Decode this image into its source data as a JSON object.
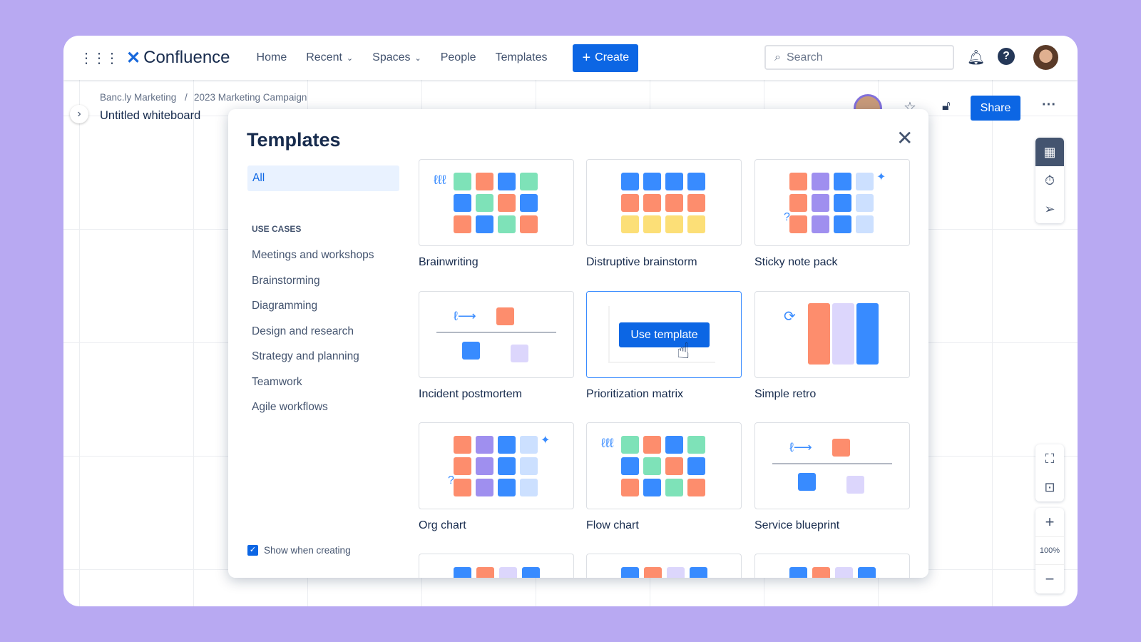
{
  "header": {
    "app_name": "Confluence",
    "nav": [
      {
        "label": "Home",
        "dropdown": false
      },
      {
        "label": "Recent",
        "dropdown": true
      },
      {
        "label": "Spaces",
        "dropdown": true
      },
      {
        "label": "People",
        "dropdown": false
      },
      {
        "label": "Templates",
        "dropdown": false
      }
    ],
    "create_label": "Create",
    "search_placeholder": "Search"
  },
  "page": {
    "breadcrumb": [
      "Banc.ly Marketing",
      "2023 Marketing Campaign"
    ],
    "title": "Untitled whiteboard",
    "share_label": "Share"
  },
  "modal": {
    "title": "Templates",
    "categories_all": "All",
    "use_cases_heading": "USE CASES",
    "use_cases": [
      "Meetings and workshops",
      "Brainstorming",
      "Diagramming",
      "Design and research",
      "Strategy and planning",
      "Teamwork",
      "Agile workflows"
    ],
    "show_when_creating": "Show when creating",
    "show_when_creating_checked": true,
    "templates": [
      {
        "name": "Brainwriting",
        "kind": "grid-a"
      },
      {
        "name": "Distruptive brainstorm",
        "kind": "grid-b"
      },
      {
        "name": "Sticky note pack",
        "kind": "grid-c"
      },
      {
        "name": "Incident postmortem",
        "kind": "timeline"
      },
      {
        "name": "Prioritization matrix",
        "kind": "matrix",
        "hovered": true
      },
      {
        "name": "Simple retro",
        "kind": "retro"
      },
      {
        "name": "Org chart",
        "kind": "grid-c"
      },
      {
        "name": "Flow chart",
        "kind": "grid-a"
      },
      {
        "name": "Service blueprint",
        "kind": "timeline"
      }
    ],
    "use_template_label": "Use template"
  },
  "zoom_level": "100%",
  "colors": {
    "accent": "#0c66e4",
    "orange": "#fd8d6d",
    "blue": "#388bff",
    "green": "#7ee2b8",
    "purple": "#9f8fef",
    "lavender": "#dcd6fc",
    "lightblue": "#cce0ff",
    "yellow": "#fcdf77",
    "bg": "#b8a9f2"
  }
}
